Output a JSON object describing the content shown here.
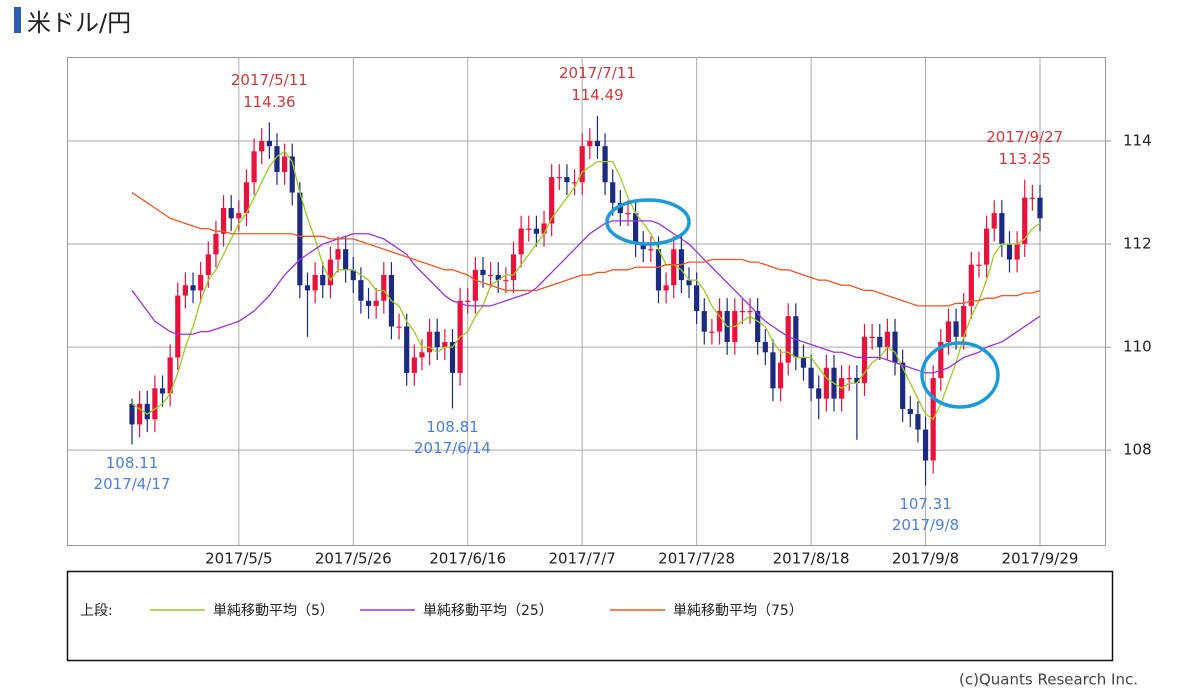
{
  "header": {
    "title": "米ドル/円"
  },
  "chart_data": {
    "type": "candlestick",
    "categories": [
      null,
      null,
      null,
      null,
      null,
      null,
      null,
      null,
      null,
      null,
      null,
      null,
      null,
      null,
      "2017/5/5",
      null,
      null,
      null,
      null,
      null,
      null,
      null,
      null,
      null,
      null,
      null,
      null,
      null,
      null,
      "2017/5/26",
      null,
      null,
      null,
      null,
      null,
      null,
      null,
      null,
      null,
      null,
      null,
      null,
      null,
      null,
      "2017/6/16",
      null,
      null,
      null,
      null,
      null,
      null,
      null,
      null,
      null,
      null,
      null,
      null,
      null,
      null,
      "2017/7/7",
      null,
      null,
      null,
      null,
      null,
      null,
      null,
      null,
      null,
      null,
      null,
      null,
      null,
      null,
      "2017/7/28",
      null,
      null,
      null,
      null,
      null,
      null,
      null,
      null,
      null,
      null,
      null,
      null,
      null,
      null,
      "2017/8/18",
      null,
      null,
      null,
      null,
      null,
      null,
      null,
      null,
      null,
      null,
      null,
      null,
      null,
      null,
      "2017/9/8",
      null,
      null,
      null,
      null,
      null,
      null,
      null,
      null,
      null,
      null,
      null,
      null,
      null,
      null,
      "2017/9/29"
    ],
    "open": [
      108.9,
      108.5,
      108.9,
      108.6,
      109.2,
      109.1,
      109.8,
      111.0,
      111.2,
      111.1,
      111.4,
      111.8,
      112.2,
      112.7,
      112.5,
      112.6,
      113.2,
      113.8,
      114.0,
      113.9,
      113.4,
      113.7,
      113.0,
      111.2,
      111.1,
      111.4,
      111.2,
      111.7,
      111.9,
      111.5,
      111.3,
      110.9,
      110.8,
      110.9,
      111.4,
      110.4,
      110.4,
      109.5,
      109.8,
      109.9,
      110.3,
      110.0,
      110.1,
      109.5,
      110.9,
      110.9,
      111.5,
      111.4,
      111.4,
      111.3,
      111.3,
      111.8,
      112.3,
      112.3,
      112.2,
      112.4,
      113.3,
      113.3,
      113.2,
      113.2,
      113.9,
      114.0,
      113.9,
      113.2,
      112.8,
      112.6,
      112.6,
      112.0,
      111.9,
      111.9,
      111.1,
      111.2,
      111.9,
      111.3,
      111.2,
      110.7,
      110.3,
      110.3,
      110.7,
      110.1,
      110.7,
      110.7,
      110.7,
      110.1,
      109.9,
      109.2,
      109.7,
      110.6,
      109.8,
      109.6,
      109.2,
      109.0,
      109.6,
      109.0,
      109.4,
      109.4,
      109.3,
      110.2,
      110.2,
      110.0,
      110.3,
      109.7,
      108.8,
      108.7,
      108.4,
      107.8,
      109.4,
      110.1,
      110.5,
      110.2,
      110.8,
      111.6,
      111.6,
      112.3,
      112.6,
      112.0,
      111.7,
      112.0,
      112.9,
      112.9
    ],
    "high": [
      109.0,
      109.15,
      109.15,
      109.45,
      109.45,
      110.05,
      111.25,
      111.45,
      111.45,
      111.65,
      112.05,
      112.45,
      112.95,
      112.95,
      112.85,
      113.45,
      114.05,
      114.25,
      114.36,
      114.15,
      113.95,
      113.95,
      113.2,
      111.45,
      111.65,
      111.65,
      111.95,
      112.15,
      112.15,
      111.75,
      111.55,
      111.15,
      111.15,
      111.65,
      111.65,
      110.65,
      110.65,
      110.05,
      110.15,
      110.55,
      110.55,
      110.35,
      110.35,
      111.15,
      111.15,
      111.75,
      111.75,
      111.65,
      111.65,
      111.55,
      112.05,
      112.55,
      112.55,
      112.55,
      112.65,
      113.55,
      113.55,
      113.55,
      113.45,
      114.15,
      114.25,
      114.49,
      114.15,
      113.45,
      113.05,
      112.85,
      112.85,
      112.25,
      112.15,
      112.15,
      111.45,
      112.15,
      112.15,
      111.55,
      111.45,
      110.95,
      110.55,
      110.95,
      110.95,
      110.95,
      110.95,
      110.95,
      110.95,
      110.35,
      110.15,
      109.95,
      110.85,
      110.85,
      110.05,
      109.85,
      109.45,
      109.85,
      109.85,
      109.65,
      109.65,
      109.65,
      110.45,
      110.45,
      110.45,
      110.55,
      110.55,
      109.95,
      109.05,
      108.95,
      108.65,
      109.65,
      110.35,
      110.75,
      110.75,
      111.05,
      111.85,
      111.85,
      112.55,
      112.85,
      112.85,
      112.25,
      112.25,
      113.25,
      113.15,
      113.15
    ],
    "low": [
      108.11,
      108.25,
      108.35,
      108.35,
      108.85,
      108.85,
      109.55,
      110.75,
      110.85,
      110.85,
      111.15,
      111.55,
      111.95,
      112.25,
      112.25,
      112.35,
      112.95,
      113.55,
      113.65,
      113.15,
      113.15,
      112.75,
      110.95,
      110.2,
      110.85,
      110.95,
      110.95,
      111.45,
      111.25,
      111.05,
      110.65,
      110.55,
      110.55,
      110.65,
      110.15,
      110.15,
      109.25,
      109.25,
      109.55,
      109.65,
      109.75,
      109.75,
      108.81,
      109.25,
      110.65,
      110.65,
      111.15,
      111.15,
      111.05,
      111.05,
      111.05,
      111.55,
      112.05,
      111.95,
      111.95,
      112.15,
      113.05,
      112.95,
      112.95,
      112.95,
      113.65,
      113.65,
      112.95,
      112.55,
      112.35,
      112.35,
      111.75,
      111.65,
      111.65,
      110.85,
      110.85,
      110.95,
      111.05,
      110.95,
      110.45,
      110.05,
      110.05,
      110.05,
      109.85,
      109.85,
      110.45,
      110.45,
      109.85,
      109.65,
      108.95,
      108.95,
      109.45,
      109.55,
      109.35,
      108.95,
      108.6,
      108.75,
      108.75,
      108.75,
      109.15,
      108.2,
      109.05,
      109.95,
      109.75,
      109.75,
      109.45,
      108.55,
      108.45,
      108.15,
      107.31,
      107.55,
      109.15,
      109.85,
      109.95,
      109.95,
      110.55,
      111.35,
      111.35,
      112.05,
      111.75,
      111.45,
      111.45,
      111.75,
      112.65,
      112.25
    ],
    "close": [
      108.5,
      108.9,
      108.6,
      109.2,
      109.1,
      109.8,
      111.0,
      111.2,
      111.1,
      111.4,
      111.8,
      112.2,
      112.7,
      112.5,
      112.6,
      113.2,
      113.8,
      114.0,
      113.9,
      113.4,
      113.7,
      113.0,
      111.2,
      111.1,
      111.4,
      111.2,
      111.7,
      111.9,
      111.5,
      111.3,
      110.9,
      110.8,
      110.9,
      111.4,
      110.4,
      110.4,
      109.5,
      109.8,
      109.9,
      110.3,
      110.0,
      110.1,
      109.5,
      110.9,
      110.9,
      111.5,
      111.4,
      111.4,
      111.3,
      111.3,
      111.8,
      112.3,
      112.3,
      112.2,
      112.4,
      113.3,
      113.3,
      113.2,
      113.2,
      113.9,
      114.0,
      113.9,
      113.2,
      112.8,
      112.6,
      112.6,
      112.0,
      111.9,
      111.9,
      111.1,
      111.2,
      111.9,
      111.3,
      111.2,
      110.7,
      110.3,
      110.3,
      110.7,
      110.1,
      110.7,
      110.7,
      110.7,
      110.1,
      109.9,
      109.2,
      109.7,
      110.6,
      109.8,
      109.6,
      109.2,
      109.0,
      109.6,
      109.0,
      109.4,
      109.4,
      109.3,
      110.2,
      110.2,
      110.0,
      110.3,
      109.7,
      108.8,
      108.7,
      108.4,
      107.8,
      109.4,
      110.1,
      110.5,
      110.2,
      110.8,
      111.6,
      111.6,
      112.3,
      112.6,
      112.0,
      111.7,
      112.0,
      112.9,
      112.9,
      112.5
    ],
    "up_color": "#e8123c",
    "down_color": "#1c2a80",
    "series": [
      {
        "name": "単純移動平均（5）",
        "color": "#99cc22",
        "values": [
          108.9,
          108.8,
          108.7,
          108.8,
          108.9,
          109.1,
          109.5,
          110.0,
          110.4,
          110.9,
          111.3,
          111.5,
          111.8,
          112.1,
          112.4,
          112.6,
          112.9,
          113.2,
          113.5,
          113.7,
          113.8,
          113.6,
          113.0,
          112.5,
          112.1,
          111.6,
          111.3,
          111.5,
          111.5,
          111.5,
          111.4,
          111.3,
          111.1,
          111.1,
          110.9,
          110.8,
          110.5,
          110.3,
          110.0,
          110.0,
          109.9,
          110.0,
          110.0,
          110.2,
          110.3,
          110.6,
          110.8,
          111.2,
          111.3,
          111.4,
          111.4,
          111.6,
          111.8,
          112.0,
          112.2,
          112.5,
          112.7,
          112.9,
          113.1,
          113.4,
          113.5,
          113.6,
          113.6,
          113.6,
          113.3,
          112.9,
          112.6,
          112.4,
          112.2,
          111.9,
          111.6,
          111.6,
          111.5,
          111.3,
          111.3,
          111.1,
          110.8,
          110.6,
          110.4,
          110.4,
          110.5,
          110.6,
          110.5,
          110.4,
          110.1,
          109.9,
          109.9,
          109.8,
          109.8,
          109.8,
          109.6,
          109.4,
          109.3,
          109.2,
          109.3,
          109.3,
          109.5,
          109.7,
          109.8,
          110.0,
          109.9,
          109.6,
          109.3,
          109.0,
          108.7,
          108.6,
          108.9,
          109.3,
          109.7,
          110.2,
          110.6,
          110.9,
          111.3,
          111.8,
          112.0,
          112.0,
          112.0,
          112.1,
          112.3,
          112.4
        ]
      },
      {
        "name": "単純移動平均（25）",
        "color": "#9933dd",
        "values": [
          111.1,
          110.9,
          110.7,
          110.5,
          110.4,
          110.3,
          110.25,
          110.25,
          110.25,
          110.3,
          110.3,
          110.35,
          110.4,
          110.45,
          110.5,
          110.6,
          110.7,
          110.85,
          111.0,
          111.2,
          111.4,
          111.55,
          111.7,
          111.8,
          111.9,
          112.0,
          112.05,
          112.1,
          112.15,
          112.2,
          112.2,
          112.2,
          112.15,
          112.1,
          112.0,
          111.9,
          111.8,
          111.6,
          111.45,
          111.3,
          111.15,
          111.0,
          110.9,
          110.85,
          110.8,
          110.8,
          110.8,
          110.8,
          110.85,
          110.9,
          110.95,
          111.0,
          111.05,
          111.15,
          111.3,
          111.45,
          111.6,
          111.75,
          111.9,
          112.05,
          112.2,
          112.3,
          112.4,
          112.45,
          112.45,
          112.45,
          112.45,
          112.45,
          112.45,
          112.4,
          112.3,
          112.2,
          112.1,
          112.0,
          111.85,
          111.7,
          111.55,
          111.4,
          111.25,
          111.1,
          110.95,
          110.8,
          110.65,
          110.5,
          110.4,
          110.3,
          110.2,
          110.15,
          110.1,
          110.05,
          110.0,
          109.95,
          109.9,
          109.9,
          109.85,
          109.8,
          109.8,
          109.8,
          109.8,
          109.75,
          109.7,
          109.65,
          109.6,
          109.55,
          109.5,
          109.5,
          109.55,
          109.6,
          109.7,
          109.8,
          109.85,
          109.9,
          110.0,
          110.05,
          110.1,
          110.2,
          110.3,
          110.4,
          110.5,
          110.6
        ]
      },
      {
        "name": "単純移動平均（75）",
        "color": "#f25522",
        "values": [
          113.0,
          112.9,
          112.8,
          112.7,
          112.6,
          112.5,
          112.45,
          112.4,
          112.35,
          112.3,
          112.3,
          112.25,
          112.25,
          112.2,
          112.2,
          112.2,
          112.2,
          112.2,
          112.2,
          112.2,
          112.2,
          112.2,
          112.15,
          112.15,
          112.15,
          112.15,
          112.1,
          112.1,
          112.1,
          112.1,
          112.05,
          112.0,
          111.95,
          111.9,
          111.85,
          111.8,
          111.75,
          111.7,
          111.65,
          111.6,
          111.55,
          111.5,
          111.5,
          111.45,
          111.4,
          111.3,
          111.25,
          111.2,
          111.15,
          111.1,
          111.1,
          111.1,
          111.1,
          111.1,
          111.15,
          111.2,
          111.25,
          111.3,
          111.35,
          111.4,
          111.4,
          111.45,
          111.45,
          111.5,
          111.5,
          111.5,
          111.55,
          111.55,
          111.55,
          111.55,
          111.6,
          111.6,
          111.6,
          111.65,
          111.65,
          111.65,
          111.7,
          111.7,
          111.7,
          111.7,
          111.7,
          111.65,
          111.65,
          111.6,
          111.55,
          111.5,
          111.5,
          111.45,
          111.4,
          111.35,
          111.3,
          111.3,
          111.25,
          111.2,
          111.2,
          111.15,
          111.1,
          111.1,
          111.05,
          111.0,
          110.95,
          110.9,
          110.85,
          110.8,
          110.8,
          110.8,
          110.8,
          110.8,
          110.85,
          110.85,
          110.9,
          110.9,
          110.95,
          110.95,
          111.0,
          111.0,
          111.0,
          111.05,
          111.05,
          111.1
        ]
      }
    ],
    "ylim": [
      106.16,
      115.63
    ],
    "yticks": [
      108,
      110,
      112,
      114
    ],
    "grid": true,
    "legend_label": "上段:",
    "annotations": [
      {
        "date": "2017/5/11",
        "value": 114.36,
        "color": "#cc3b3b"
      },
      {
        "date": "2017/7/11",
        "value": 114.49,
        "color": "#cc3b3b"
      },
      {
        "date": "2017/9/27",
        "value": 113.25,
        "color": "#cc3b3b"
      },
      {
        "date": "2017/4/17",
        "value": 108.11,
        "color": "#4a7fe0"
      },
      {
        "date": "2017/6/14",
        "value": 108.81,
        "color": "#4a7fe0"
      },
      {
        "date": "2017/9/8",
        "value": 107.31,
        "color": "#4a7fe0"
      }
    ]
  },
  "footer": {
    "copyright": "(c)Quants Research Inc."
  }
}
